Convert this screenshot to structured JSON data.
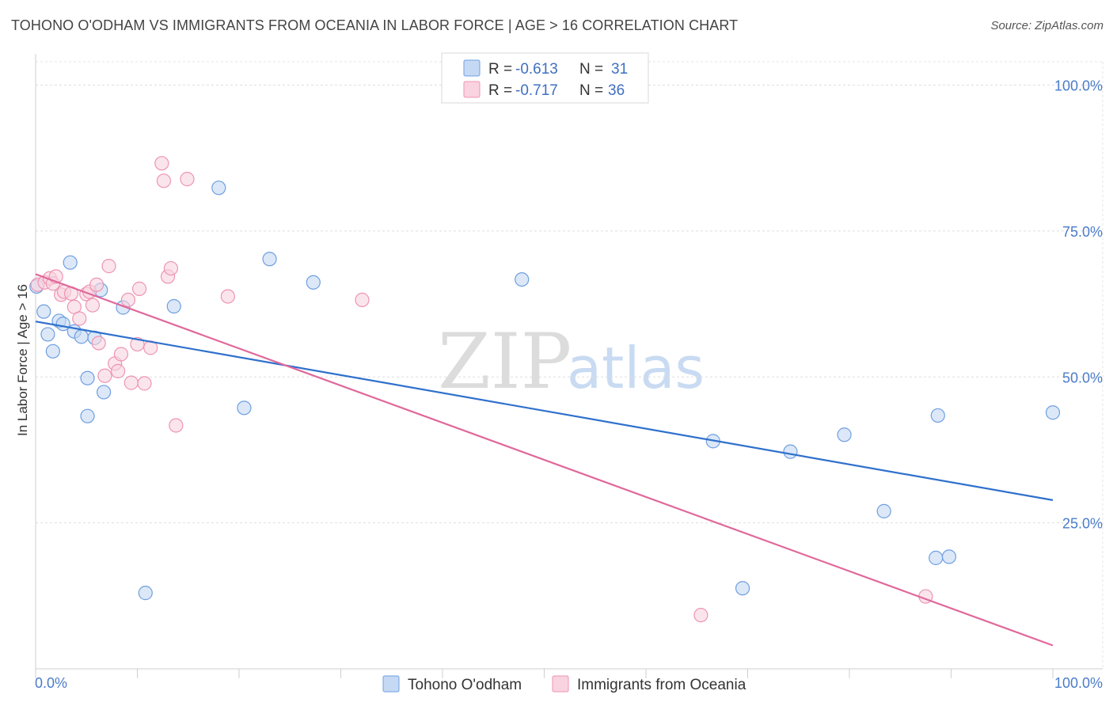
{
  "header": {
    "title": "TOHONO O'ODHAM VS IMMIGRANTS FROM OCEANIA IN LABOR FORCE | AGE > 16 CORRELATION CHART",
    "source": "Source: ZipAtlas.com"
  },
  "watermark": {
    "zip": "ZIP",
    "atlas": "atlas"
  },
  "chart_data": {
    "type": "scatter",
    "title": "TOHONO O'ODHAM VS IMMIGRANTS FROM OCEANIA IN LABOR FORCE | AGE > 16 CORRELATION CHART",
    "xlabel": "",
    "ylabel": "In Labor Force | Age > 16",
    "xlim": [
      0,
      100
    ],
    "ylim": [
      0,
      104
    ],
    "x_tick_labels": [
      "0.0%",
      "100.0%"
    ],
    "y_ticks": [
      25,
      50,
      75,
      100
    ],
    "y_tick_labels": [
      "25.0%",
      "50.0%",
      "75.0%",
      "100.0%"
    ],
    "grid": true,
    "legend_position": "top-center",
    "stats": [
      {
        "r_label": "R = ",
        "r_value": "-0.613",
        "n_label": "N = ",
        "n_value": "31"
      },
      {
        "r_label": "R = ",
        "r_value": "-0.717",
        "n_label": "N = ",
        "n_value": "36"
      }
    ],
    "series": [
      {
        "name": "Tohono O'odham",
        "color": "#6f9fe0",
        "fill": "#c5d9f4",
        "trend_color": "#2f70cc",
        "trend": {
          "x": [
            0,
            100
          ],
          "y": [
            59.5,
            28.9
          ]
        },
        "points": [
          {
            "x": 0.1,
            "y": 65.5
          },
          {
            "x": 0.8,
            "y": 61.2
          },
          {
            "x": 1.2,
            "y": 57.3
          },
          {
            "x": 1.7,
            "y": 54.4
          },
          {
            "x": 2.3,
            "y": 59.6
          },
          {
            "x": 2.7,
            "y": 59.1
          },
          {
            "x": 3.4,
            "y": 69.6
          },
          {
            "x": 3.8,
            "y": 57.8
          },
          {
            "x": 4.5,
            "y": 56.9
          },
          {
            "x": 5.1,
            "y": 49.8
          },
          {
            "x": 5.1,
            "y": 43.3
          },
          {
            "x": 5.8,
            "y": 56.7
          },
          {
            "x": 6.4,
            "y": 64.9
          },
          {
            "x": 6.7,
            "y": 47.4
          },
          {
            "x": 8.6,
            "y": 61.9
          },
          {
            "x": 10.8,
            "y": 13.0
          },
          {
            "x": 13.6,
            "y": 62.1
          },
          {
            "x": 18.0,
            "y": 82.4
          },
          {
            "x": 20.5,
            "y": 44.7
          },
          {
            "x": 23.0,
            "y": 70.2
          },
          {
            "x": 27.3,
            "y": 66.2
          },
          {
            "x": 47.8,
            "y": 66.7
          },
          {
            "x": 66.6,
            "y": 39.0
          },
          {
            "x": 69.5,
            "y": 13.8
          },
          {
            "x": 74.2,
            "y": 37.2
          },
          {
            "x": 79.5,
            "y": 40.1
          },
          {
            "x": 83.4,
            "y": 27.0
          },
          {
            "x": 88.5,
            "y": 19.0
          },
          {
            "x": 88.7,
            "y": 43.4
          },
          {
            "x": 89.8,
            "y": 19.2
          },
          {
            "x": 100.0,
            "y": 43.9
          }
        ]
      },
      {
        "name": "Immigrants from Oceania",
        "color": "#ee94b2",
        "fill": "#f9d3df",
        "trend_color": "#e0689a",
        "trend": {
          "x": [
            0,
            100
          ],
          "y": [
            67.6,
            4.0
          ]
        },
        "points": [
          {
            "x": 0.2,
            "y": 65.8
          },
          {
            "x": 0.9,
            "y": 66.2
          },
          {
            "x": 1.4,
            "y": 66.9
          },
          {
            "x": 1.7,
            "y": 66.0
          },
          {
            "x": 2.0,
            "y": 67.2
          },
          {
            "x": 2.5,
            "y": 64.1
          },
          {
            "x": 2.8,
            "y": 64.6
          },
          {
            "x": 3.5,
            "y": 64.3
          },
          {
            "x": 3.8,
            "y": 62.0
          },
          {
            "x": 4.3,
            "y": 60.0
          },
          {
            "x": 5.0,
            "y": 64.2
          },
          {
            "x": 5.3,
            "y": 64.6
          },
          {
            "x": 5.6,
            "y": 62.3
          },
          {
            "x": 6.0,
            "y": 65.8
          },
          {
            "x": 6.2,
            "y": 55.8
          },
          {
            "x": 6.8,
            "y": 50.2
          },
          {
            "x": 7.2,
            "y": 69.0
          },
          {
            "x": 7.8,
            "y": 52.3
          },
          {
            "x": 8.1,
            "y": 51.0
          },
          {
            "x": 8.4,
            "y": 53.9
          },
          {
            "x": 9.1,
            "y": 63.2
          },
          {
            "x": 9.4,
            "y": 49.0
          },
          {
            "x": 10.0,
            "y": 55.6
          },
          {
            "x": 10.2,
            "y": 65.1
          },
          {
            "x": 10.7,
            "y": 48.9
          },
          {
            "x": 11.3,
            "y": 55.0
          },
          {
            "x": 12.4,
            "y": 86.6
          },
          {
            "x": 12.6,
            "y": 83.6
          },
          {
            "x": 13.0,
            "y": 67.2
          },
          {
            "x": 13.3,
            "y": 68.6
          },
          {
            "x": 13.8,
            "y": 41.7
          },
          {
            "x": 14.9,
            "y": 83.9
          },
          {
            "x": 18.9,
            "y": 63.8
          },
          {
            "x": 32.1,
            "y": 63.2
          },
          {
            "x": 65.4,
            "y": 9.2
          },
          {
            "x": 87.5,
            "y": 12.4
          }
        ]
      }
    ]
  }
}
